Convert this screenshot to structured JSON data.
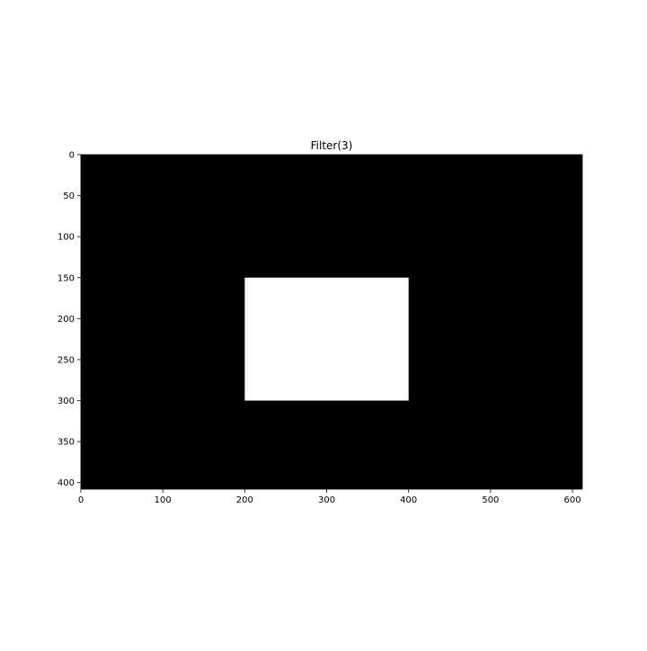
{
  "chart_data": {
    "type": "heatmap",
    "title": "Filter(3)",
    "xlabel": "",
    "ylabel": "",
    "xlim": [
      0,
      612
    ],
    "ylim": [
      408,
      0
    ],
    "image_size": {
      "width": 612,
      "height": 408
    },
    "background_value": 0,
    "colormap": "gray",
    "grid": false,
    "regions": [
      {
        "value": 255,
        "x_range": [
          200,
          400
        ],
        "y_range": [
          150,
          300
        ]
      }
    ],
    "xticks": [
      0,
      100,
      200,
      300,
      400,
      500,
      600
    ],
    "yticks": [
      0,
      50,
      100,
      150,
      200,
      250,
      300,
      350,
      400
    ]
  },
  "colors": {
    "low": "#000000",
    "high": "#ffffff",
    "axis": "#000000"
  }
}
